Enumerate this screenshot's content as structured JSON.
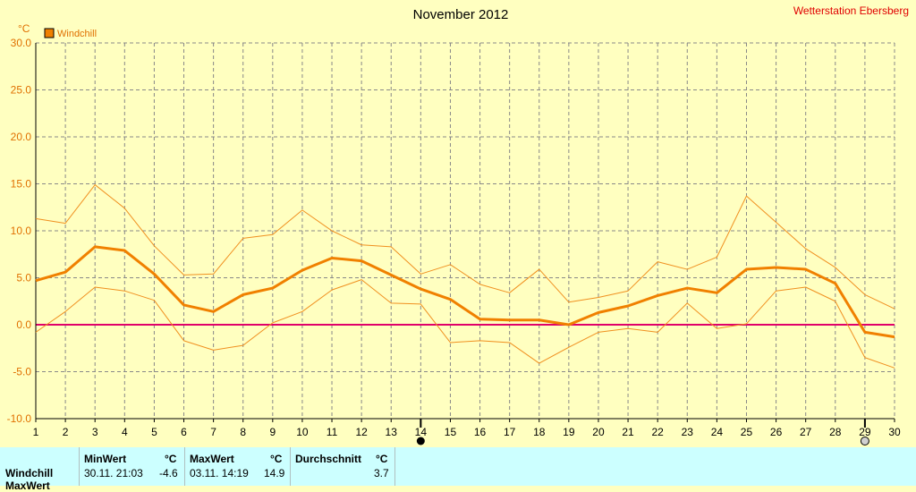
{
  "chart_data": {
    "type": "line",
    "title": "November 2012",
    "station": "Wetterstation Ebersberg",
    "yunit": "°C",
    "legend": [
      {
        "name": "Windchill",
        "color": "#f08000"
      }
    ],
    "x": [
      1,
      2,
      3,
      4,
      5,
      6,
      7,
      8,
      9,
      10,
      11,
      12,
      13,
      14,
      15,
      16,
      17,
      18,
      19,
      20,
      21,
      22,
      23,
      24,
      25,
      26,
      27,
      28,
      29,
      30
    ],
    "ylim": [
      -10.0,
      30.0
    ],
    "yticks": [
      "30.0",
      "25.0",
      "20.0",
      "15.0",
      "10.0",
      "5.0",
      "0.0",
      "-5.0",
      "-10.0"
    ],
    "grid": true,
    "markers": [
      {
        "day": 14,
        "symbol": "filled-circle"
      },
      {
        "day": 29,
        "symbol": "open-circle"
      }
    ],
    "series": [
      {
        "name": "Windchill",
        "role": "mean",
        "color": "#f08000",
        "values": [
          4.7,
          5.6,
          8.3,
          7.9,
          5.4,
          2.1,
          1.4,
          3.2,
          3.9,
          5.8,
          7.1,
          6.8,
          5.3,
          3.8,
          2.7,
          0.6,
          0.5,
          0.5,
          0.0,
          1.3,
          2.0,
          3.1,
          3.9,
          3.4,
          5.9,
          6.1,
          5.9,
          4.4,
          -0.8,
          -1.3
        ]
      },
      {
        "role": "max",
        "color": "#f09020",
        "values": [
          11.3,
          10.8,
          14.9,
          12.4,
          8.4,
          5.3,
          5.4,
          9.2,
          9.6,
          12.2,
          10.0,
          8.5,
          8.3,
          5.4,
          6.4,
          4.3,
          3.4,
          5.9,
          2.4,
          2.9,
          3.6,
          6.7,
          5.9,
          7.2,
          13.7,
          10.9,
          8.1,
          6.1,
          3.2,
          1.7
        ]
      },
      {
        "role": "min",
        "color": "#f09020",
        "values": [
          -0.8,
          1.4,
          4.0,
          3.6,
          2.6,
          -1.7,
          -2.7,
          -2.2,
          0.2,
          1.4,
          3.7,
          4.8,
          2.3,
          2.2,
          -1.9,
          -1.7,
          -1.9,
          -4.1,
          -2.4,
          -0.8,
          -0.4,
          -0.8,
          2.3,
          -0.4,
          0.1,
          3.6,
          4.0,
          2.5,
          -3.5,
          -4.6
        ]
      }
    ]
  },
  "stats": {
    "row_label": "Windchill",
    "row2_label": "MaxWert",
    "min_header": "MinWert",
    "min_unit": "°C",
    "min_time": "30.11.  21:03",
    "min_value": "-4.6",
    "max_header": "MaxWert",
    "max_unit": "°C",
    "max_time": "03.11.  14:19",
    "max_value": "14.9",
    "avg_header": "Durchschnitt",
    "avg_unit": "°C",
    "avg_value": "3.7"
  }
}
